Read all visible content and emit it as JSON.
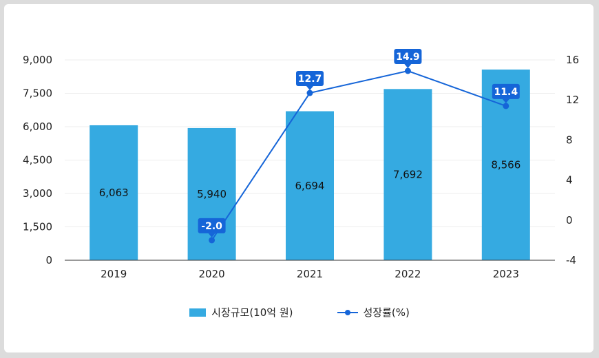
{
  "chart_data": {
    "type": "bar",
    "categories": [
      "2019",
      "2020",
      "2021",
      "2022",
      "2023"
    ],
    "series": [
      {
        "name": "시장규모(10억 원)",
        "type": "bar",
        "axis": "left",
        "values": [
          6063,
          5940,
          6694,
          7692,
          8566
        ],
        "color": "#35aae1"
      },
      {
        "name": "성장률(%)",
        "type": "line",
        "axis": "right",
        "values": [
          null,
          -2.0,
          12.7,
          14.9,
          11.4
        ],
        "color": "#1565d8"
      }
    ],
    "bar_labels": [
      "6,063",
      "5,940",
      "6,694",
      "7,692",
      "8,566"
    ],
    "line_labels": [
      "",
      "-2.0",
      "12.7",
      "14.9",
      "11.4"
    ],
    "y_left": {
      "min": 0,
      "max": 9000,
      "ticks": [
        "0",
        "1,500",
        "3,000",
        "4,500",
        "6,000",
        "7,500",
        "9,000"
      ]
    },
    "y_right": {
      "min": -4,
      "max": 16,
      "ticks": [
        "-4",
        "0",
        "4",
        "8",
        "12",
        "16"
      ]
    },
    "grid": true,
    "legend": "bottom-center"
  }
}
